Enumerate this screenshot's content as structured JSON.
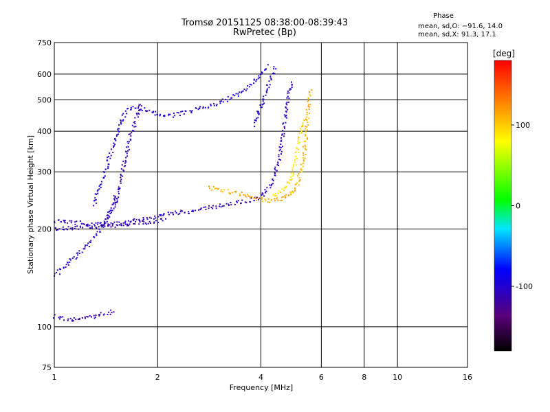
{
  "chart_data": {
    "type": "scatter",
    "title": "Tromsø 20151125 08:38:00-08:39:43",
    "subtitle": "RwPretec (Bp)",
    "xlabel": "Frequency [MHz]",
    "ylabel": "Stationary phase Virtual Height [km]",
    "x_scale": "log",
    "y_scale": "log",
    "xlim": [
      1,
      16
    ],
    "ylim": [
      75,
      750
    ],
    "x_ticks": [
      1,
      2,
      4,
      6,
      8,
      10,
      16
    ],
    "x_tick_labels": [
      "1",
      "2",
      "4",
      "6",
      "8",
      "10",
      "16"
    ],
    "x_gridlines": [
      2,
      4,
      6,
      8,
      10
    ],
    "y_ticks": [
      75,
      100,
      200,
      300,
      400,
      500,
      600,
      750
    ],
    "y_tick_labels": [
      "75",
      "100",
      "200",
      "300",
      "400",
      "500",
      "600",
      "750"
    ],
    "y_gridlines": [
      100,
      200,
      300,
      400,
      500,
      600
    ],
    "grid": true,
    "colorbar": {
      "label": "[deg]",
      "range": [
        -180,
        180
      ],
      "ticks": [
        100,
        0,
        -100
      ],
      "tick_labels": [
        "100",
        "0",
        "-100"
      ]
    },
    "phase_box": {
      "title": "Phase",
      "o_line": "mean, sd,O: −91.6, 14.0",
      "x_line": "mean, sd,X:  91.3, 17.1"
    },
    "traces": [
      {
        "name": "",
        "phase": -112,
        "points": [
          [
            1.0,
            108
          ],
          [
            1.1,
            106
          ],
          [
            1.2,
            106
          ],
          [
            1.3,
            108
          ],
          [
            1.4,
            110
          ],
          [
            1.5,
            113
          ]
        ]
      },
      {
        "name": "",
        "phase": -110,
        "points": [
          [
            1.0,
            213
          ],
          [
            1.05,
            212
          ],
          [
            1.15,
            210
          ],
          [
            1.3,
            208
          ],
          [
            1.5,
            206
          ],
          [
            1.8,
            210
          ],
          [
            2.1,
            215
          ]
        ]
      },
      {
        "name": "",
        "phase": -108,
        "points": [
          [
            1.0,
            200
          ],
          [
            1.1,
            202
          ],
          [
            1.2,
            204
          ],
          [
            1.4,
            206
          ],
          [
            1.6,
            210
          ],
          [
            1.8,
            216
          ],
          [
            2.0,
            220
          ],
          [
            2.2,
            225
          ],
          [
            2.5,
            228
          ],
          [
            2.8,
            233
          ],
          [
            3.1,
            238
          ],
          [
            3.4,
            242
          ],
          [
            3.7,
            246
          ],
          [
            3.9,
            250
          ],
          [
            4.05,
            258
          ],
          [
            4.2,
            270
          ],
          [
            4.35,
            290
          ],
          [
            4.5,
            330
          ],
          [
            4.6,
            380
          ],
          [
            4.7,
            450
          ],
          [
            4.8,
            520
          ],
          [
            4.9,
            580
          ]
        ]
      },
      {
        "name": "",
        "phase": -105,
        "points": [
          [
            1.0,
            145
          ],
          [
            1.05,
            152
          ],
          [
            1.1,
            160
          ],
          [
            1.15,
            166
          ],
          [
            1.2,
            172
          ],
          [
            1.25,
            180
          ],
          [
            1.3,
            190
          ],
          [
            1.35,
            200
          ],
          [
            1.4,
            212
          ],
          [
            1.45,
            225
          ],
          [
            1.48,
            240
          ],
          [
            1.5,
            260
          ]
        ]
      },
      {
        "name": "",
        "phase": -100,
        "points": [
          [
            1.3,
            240
          ],
          [
            1.35,
            270
          ],
          [
            1.4,
            300
          ],
          [
            1.45,
            340
          ],
          [
            1.5,
            380
          ],
          [
            1.55,
            420
          ],
          [
            1.6,
            460
          ],
          [
            1.7,
            480
          ],
          [
            1.8,
            470
          ],
          [
            1.9,
            460
          ],
          [
            2.0,
            455
          ],
          [
            2.2,
            450
          ],
          [
            2.4,
            460
          ],
          [
            2.6,
            470
          ],
          [
            2.8,
            480
          ],
          [
            3.0,
            490
          ],
          [
            3.2,
            505
          ],
          [
            3.4,
            520
          ],
          [
            3.6,
            540
          ],
          [
            3.8,
            570
          ],
          [
            4.0,
            610
          ],
          [
            4.2,
            640
          ]
        ]
      },
      {
        "name": "",
        "phase": -110,
        "points": [
          [
            1.4,
            215
          ],
          [
            1.5,
            240
          ],
          [
            1.55,
            280
          ],
          [
            1.6,
            330
          ],
          [
            1.65,
            380
          ],
          [
            1.7,
            420
          ],
          [
            1.75,
            460
          ],
          [
            1.8,
            490
          ]
        ]
      },
      {
        "name": "",
        "phase": 110,
        "points": [
          [
            2.8,
            270
          ],
          [
            3.0,
            265
          ],
          [
            3.2,
            262
          ],
          [
            3.4,
            258
          ],
          [
            3.6,
            255
          ],
          [
            3.8,
            250
          ],
          [
            4.0,
            248
          ],
          [
            4.2,
            246
          ],
          [
            4.4,
            247
          ],
          [
            4.6,
            250
          ],
          [
            4.8,
            256
          ],
          [
            5.0,
            265
          ],
          [
            5.1,
            280
          ],
          [
            5.2,
            300
          ],
          [
            5.3,
            330
          ],
          [
            5.35,
            360
          ],
          [
            5.4,
            400
          ],
          [
            5.45,
            450
          ],
          [
            5.5,
            500
          ],
          [
            5.55,
            540
          ]
        ]
      },
      {
        "name": "",
        "phase": 90,
        "points": [
          [
            4.3,
            255
          ],
          [
            4.5,
            260
          ],
          [
            4.7,
            270
          ],
          [
            4.9,
            290
          ],
          [
            5.0,
            320
          ],
          [
            5.1,
            360
          ],
          [
            5.2,
            400
          ],
          [
            5.3,
            440
          ]
        ]
      },
      {
        "name": "",
        "phase": -98,
        "points": [
          [
            3.8,
            420
          ],
          [
            3.9,
            450
          ],
          [
            4.0,
            480
          ],
          [
            4.1,
            520
          ],
          [
            4.2,
            560
          ],
          [
            4.3,
            600
          ],
          [
            4.4,
            640
          ]
        ]
      }
    ]
  }
}
